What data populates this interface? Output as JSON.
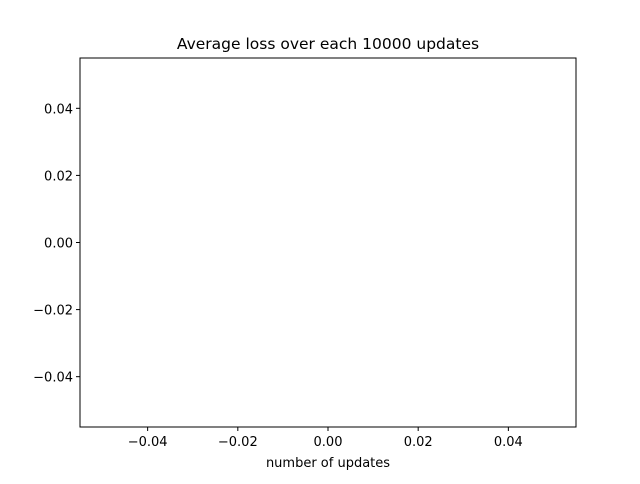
{
  "chart_data": {
    "type": "line",
    "title": "Average loss over each 10000 updates",
    "xlabel": "number of updates",
    "ylabel": "",
    "series": [
      {
        "values": []
      }
    ],
    "xlim": [
      -0.055,
      0.055
    ],
    "ylim": [
      -0.055,
      0.055
    ],
    "x_ticks": [
      -0.04,
      -0.02,
      0.0,
      0.02,
      0.04
    ],
    "x_tick_labels": [
      "−0.04",
      "−0.02",
      "0.00",
      "0.02",
      "0.04"
    ],
    "y_ticks": [
      -0.04,
      -0.02,
      0.0,
      0.02,
      0.04
    ],
    "y_tick_labels": [
      "−0.04",
      "−0.02",
      "0.00",
      "0.02",
      "0.04"
    ],
    "grid": false,
    "legend": "none"
  }
}
